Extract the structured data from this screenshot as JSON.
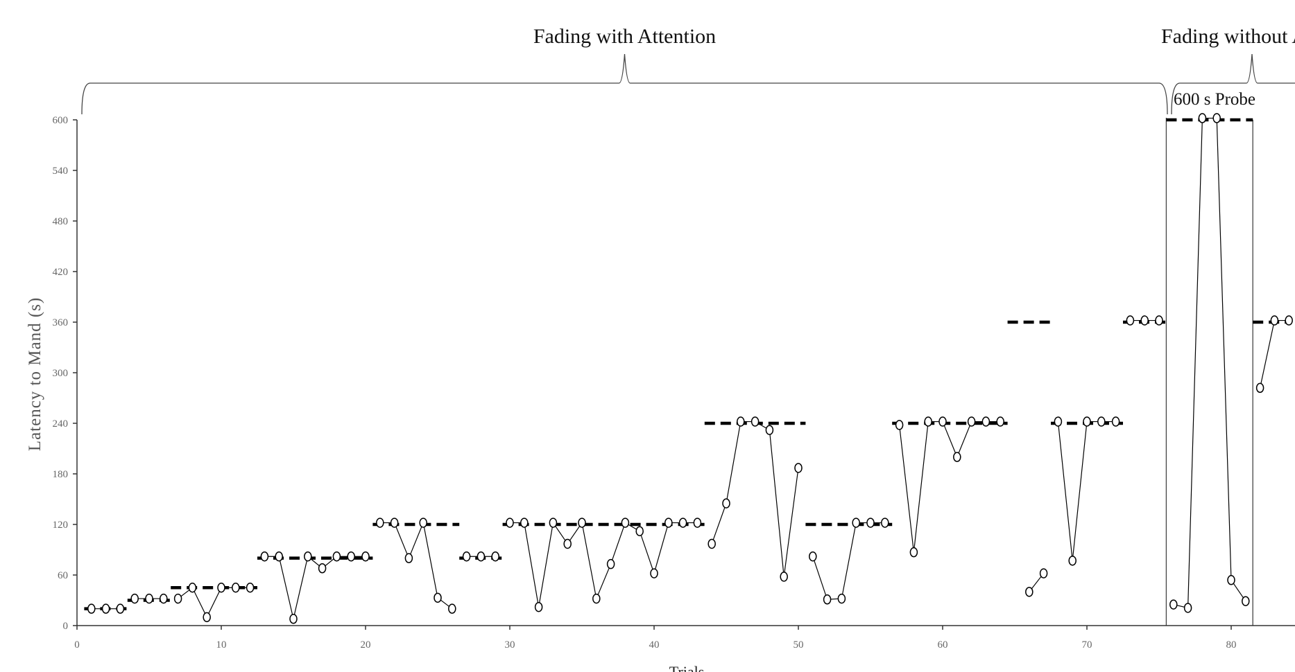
{
  "chart_data": {
    "type": "line",
    "title": "",
    "xlabel": "Trials",
    "ylabel": "Latency to Mand (s)",
    "xlim": [
      0,
      84
    ],
    "ylim": [
      0,
      600
    ],
    "x_ticks": [
      0,
      10,
      20,
      30,
      40,
      50,
      60,
      70,
      80
    ],
    "y_ticks": [
      0,
      60,
      120,
      180,
      240,
      300,
      360,
      420,
      480,
      540,
      600
    ],
    "phases": [
      {
        "label": "Fading with Attention",
        "x_start": 0.5,
        "x_end": 75.5
      },
      {
        "label": "Fading without Atte",
        "x_start": 75.5,
        "x_end": 84
      }
    ],
    "probe": {
      "label": "600 s Probe",
      "x_start": 75.5,
      "x_end": 81.5
    },
    "criteria": [
      {
        "x_start": 0.5,
        "x_end": 3.5,
        "y": 20
      },
      {
        "x_start": 3.5,
        "x_end": 6.5,
        "y": 30
      },
      {
        "x_start": 6.5,
        "x_end": 12.5,
        "y": 45
      },
      {
        "x_start": 12.5,
        "x_end": 20.5,
        "y": 80
      },
      {
        "x_start": 20.5,
        "x_end": 26.5,
        "y": 120
      },
      {
        "x_start": 26.5,
        "x_end": 29.5,
        "y": 80
      },
      {
        "x_start": 29.5,
        "x_end": 43.5,
        "y": 120
      },
      {
        "x_start": 43.5,
        "x_end": 50.5,
        "y": 240
      },
      {
        "x_start": 50.5,
        "x_end": 56.5,
        "y": 120
      },
      {
        "x_start": 56.5,
        "x_end": 64.5,
        "y": 240
      },
      {
        "x_start": 64.5,
        "x_end": 67.5,
        "y": 360
      },
      {
        "x_start": 67.5,
        "x_end": 72.5,
        "y": 240
      },
      {
        "x_start": 72.5,
        "x_end": 75.5,
        "y": 360
      },
      {
        "x_start": 75.5,
        "x_end": 81.5,
        "y": 600
      },
      {
        "x_start": 81.5,
        "x_end": 84,
        "y": 360
      }
    ],
    "segments": [
      {
        "x": [
          1,
          2,
          3
        ],
        "y": [
          20,
          20,
          20
        ]
      },
      {
        "x": [
          4,
          5,
          6
        ],
        "y": [
          32,
          32,
          32
        ]
      },
      {
        "x": [
          7,
          8,
          9,
          10,
          11,
          12
        ],
        "y": [
          32,
          45,
          10,
          45,
          45,
          45
        ]
      },
      {
        "x": [
          13,
          14,
          15,
          16,
          17,
          18,
          19,
          20
        ],
        "y": [
          82,
          82,
          8,
          82,
          68,
          82,
          82,
          82
        ]
      },
      {
        "x": [
          21,
          22,
          23,
          24,
          25,
          26
        ],
        "y": [
          122,
          122,
          80,
          122,
          33,
          20
        ]
      },
      {
        "x": [
          27,
          28,
          29
        ],
        "y": [
          82,
          82,
          82
        ]
      },
      {
        "x": [
          30,
          31,
          32,
          33,
          34,
          35,
          36,
          37,
          38,
          39,
          40,
          41,
          42,
          43
        ],
        "y": [
          122,
          122,
          22,
          122,
          97,
          122,
          32,
          73,
          122,
          112,
          62,
          122,
          122,
          122
        ]
      },
      {
        "x": [
          44,
          45,
          46,
          47,
          48,
          49,
          50
        ],
        "y": [
          97,
          145,
          242,
          242,
          232,
          58,
          187
        ]
      },
      {
        "x": [
          51,
          52,
          53,
          54,
          55,
          56
        ],
        "y": [
          82,
          31,
          32,
          122,
          122,
          122
        ]
      },
      {
        "x": [
          57,
          58,
          59,
          60,
          61,
          62,
          63,
          64
        ],
        "y": [
          238,
          87,
          242,
          242,
          200,
          242,
          242,
          242
        ]
      },
      {
        "x": [
          66,
          67
        ],
        "y": [
          40,
          62
        ]
      },
      {
        "x": [
          68,
          69,
          70,
          71,
          72
        ],
        "y": [
          242,
          77,
          242,
          242,
          242
        ]
      },
      {
        "x": [
          73,
          74,
          75
        ],
        "y": [
          362,
          362,
          362
        ]
      },
      {
        "x": [
          76,
          77,
          78,
          79,
          80,
          81
        ],
        "y": [
          25,
          21,
          602,
          602,
          54,
          29
        ]
      },
      {
        "x": [
          82,
          83,
          84
        ],
        "y": [
          282,
          362,
          362
        ]
      }
    ]
  }
}
